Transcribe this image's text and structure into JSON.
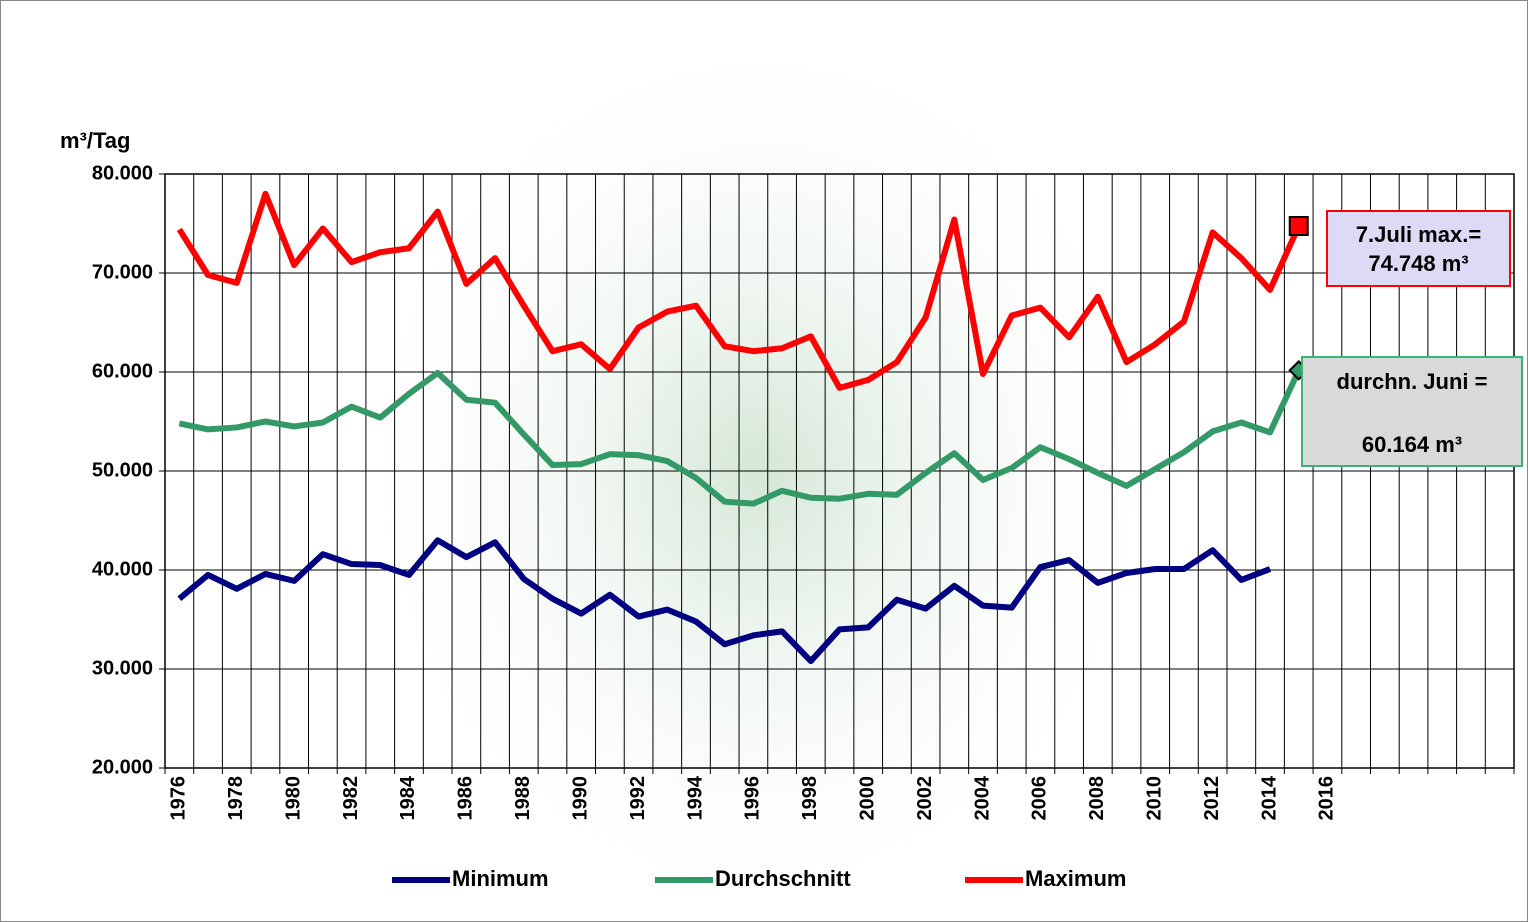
{
  "chart_data": {
    "type": "line",
    "y_label": "m³/Tag",
    "categories": [
      "1976",
      null,
      "1978",
      null,
      "1980",
      null,
      "1982",
      null,
      "1984",
      null,
      "1986",
      null,
      "1988",
      null,
      "1990",
      null,
      "1992",
      null,
      "1994",
      null,
      "1996",
      null,
      "1998",
      null,
      "2000",
      null,
      "2002",
      null,
      "2004",
      null,
      "2006",
      null,
      "2008",
      null,
      "2010",
      null,
      "2012",
      null,
      "2014",
      null,
      "2016",
      null,
      null,
      null,
      null,
      null,
      null
    ],
    "ylim": [
      20000,
      80000
    ],
    "yticks": [
      {
        "value": 20000,
        "label": "20.000"
      },
      {
        "value": 30000,
        "label": "30.000"
      },
      {
        "value": 40000,
        "label": "40.000"
      },
      {
        "value": 50000,
        "label": "50.000"
      },
      {
        "value": 60000,
        "label": "60.000"
      },
      {
        "value": 70000,
        "label": "70.000"
      },
      {
        "value": 80000,
        "label": "80.000"
      }
    ],
    "grid": true,
    "legend": "bottom",
    "series": [
      {
        "name": "Minimum",
        "color": "#000080",
        "values": [
          37100,
          39500,
          38100,
          39600,
          38900,
          41600,
          40600,
          40500,
          39500,
          43000,
          41300,
          42800,
          39100,
          37100,
          35600,
          37500,
          35300,
          36000,
          34800,
          32500,
          33400,
          33800,
          30800,
          34000,
          34200,
          37000,
          36100,
          38400,
          36400,
          36200,
          40300,
          41000,
          38700,
          39700,
          40100,
          40100,
          42000,
          39000,
          40100,
          null,
          null,
          null,
          null,
          null,
          null,
          null,
          null
        ]
      },
      {
        "name": "Durchschnitt",
        "color": "#339966",
        "marker": "diamond",
        "values": [
          54800,
          54200,
          54400,
          55000,
          54500,
          54900,
          56500,
          55400,
          57800,
          59900,
          57200,
          56900,
          53700,
          50600,
          50700,
          51700,
          51600,
          51000,
          49300,
          46900,
          46700,
          48000,
          47300,
          47200,
          47700,
          47600,
          49800,
          51800,
          49100,
          50300,
          52400,
          51200,
          49800,
          48500,
          50200,
          51900,
          54000,
          54900,
          53900,
          60164,
          null,
          null,
          null,
          null,
          null,
          null,
          null
        ]
      },
      {
        "name": "Maximum",
        "color": "#ff0000",
        "marker": "square",
        "values": [
          74400,
          69800,
          69000,
          78000,
          70800,
          74500,
          71100,
          72100,
          72500,
          76200,
          68900,
          71500,
          66700,
          62100,
          62800,
          60300,
          64500,
          66100,
          66700,
          62600,
          62100,
          62400,
          63600,
          58400,
          59200,
          61000,
          65500,
          75400,
          59800,
          65700,
          66500,
          63500,
          67600,
          61000,
          62800,
          65100,
          74100,
          71500,
          68300,
          74748,
          null,
          null,
          null,
          null,
          null,
          null,
          null
        ]
      }
    ],
    "annotations": [
      {
        "lines": [
          "7.Juli max.=",
          "74.748 m³"
        ],
        "color": "#ff0000",
        "fill": "#dcdaf5"
      },
      {
        "lines": [
          "durchn. Juni =",
          "60.164 m³"
        ],
        "color": "#3cb371",
        "fill": "#d9d9d9"
      }
    ]
  }
}
